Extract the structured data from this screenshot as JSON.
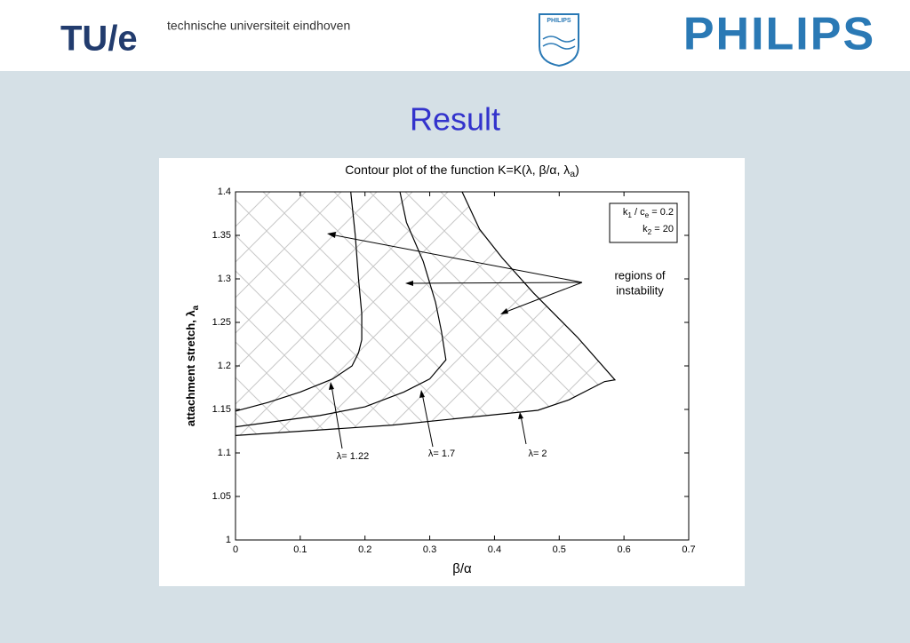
{
  "header": {
    "logo": "TU/e",
    "university": "technische universiteit eindhoven",
    "emblem": "PHILIPS",
    "brand": "PHILIPS"
  },
  "slide_title": "Result",
  "chart_data": {
    "type": "line",
    "title": [
      "Contour plot of the function K=K(λ, β/α, λ",
      "a",
      ")"
    ],
    "xlabel": "β/α",
    "ylabel": [
      "attachment stretch, λ",
      "a"
    ],
    "xlim": [
      0,
      0.7
    ],
    "xticks": [
      0,
      0.1,
      0.2,
      0.3,
      0.4,
      0.5,
      0.6,
      0.7
    ],
    "ylim": [
      1,
      1.4
    ],
    "yticks": [
      1,
      1.05,
      1.1,
      1.15,
      1.2,
      1.25,
      1.3,
      1.35,
      1.4
    ],
    "series": [
      {
        "name": "λ= 1.22",
        "color": "#000000",
        "x": [
          0,
          0.05,
          0.1,
          0.15,
          0.18,
          0.19,
          0.195,
          0.195,
          0.19,
          0.185,
          0.178
        ],
        "values": [
          1.148,
          1.158,
          1.17,
          1.185,
          1.2,
          1.215,
          1.23,
          1.26,
          1.3,
          1.35,
          1.4
        ]
      },
      {
        "name": "λ= 1.7",
        "color": "#000000",
        "x": [
          0,
          0.13,
          0.2,
          0.26,
          0.3,
          0.325,
          0.318,
          0.309,
          0.29,
          0.264,
          0.254
        ],
        "values": [
          1.13,
          1.143,
          1.153,
          1.17,
          1.185,
          1.207,
          1.24,
          1.273,
          1.32,
          1.365,
          1.4
        ]
      },
      {
        "name": "λ= 2",
        "color": "#000000",
        "x": [
          0,
          0.243,
          0.467,
          0.515,
          0.57,
          0.586,
          0.528,
          0.46,
          0.412,
          0.377,
          0.35
        ],
        "values": [
          1.12,
          1.132,
          1.149,
          1.161,
          1.182,
          1.184,
          1.233,
          1.284,
          1.324,
          1.357,
          1.4
        ]
      }
    ],
    "annotations": {
      "instability": [
        "regions of",
        "instability"
      ],
      "params": [
        [
          "k",
          "1",
          " / c",
          "e",
          " = 0.2"
        ],
        [
          "k",
          "2",
          " = 20"
        ]
      ]
    }
  }
}
